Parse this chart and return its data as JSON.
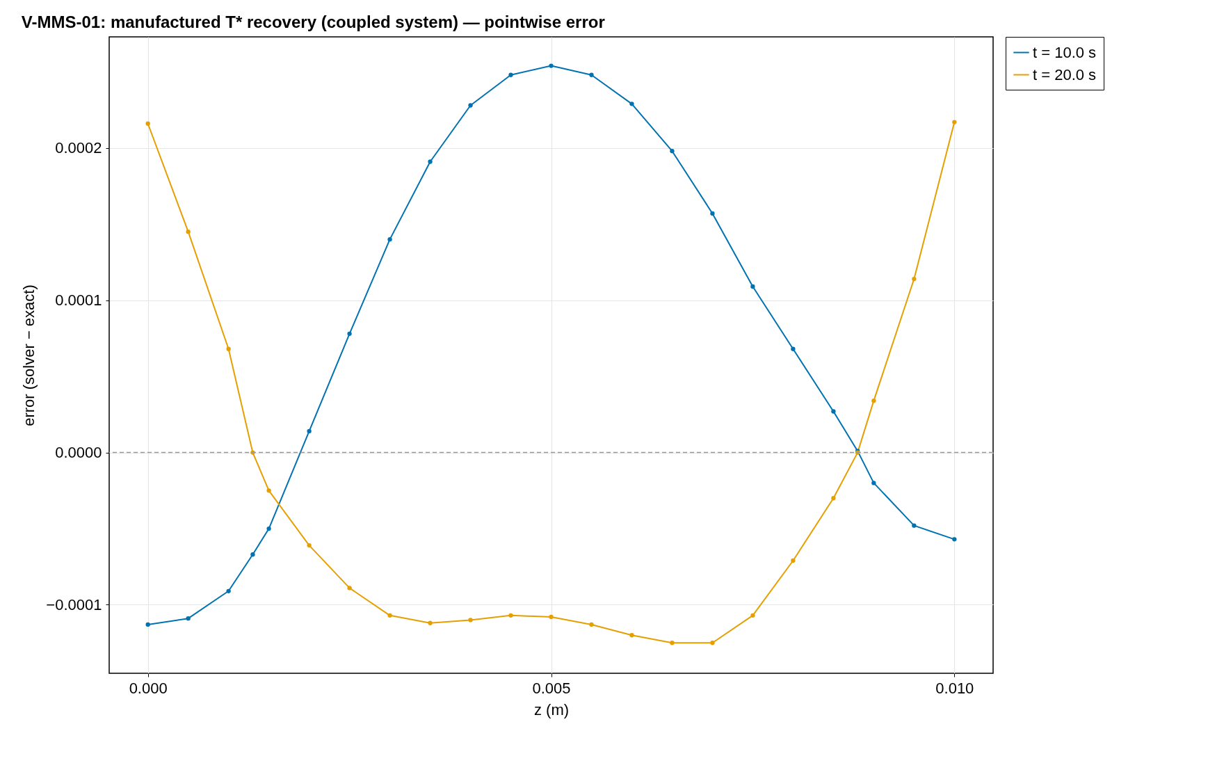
{
  "chart_data": {
    "type": "line",
    "title": "V-MMS-01: manufactured T* recovery (coupled system) — pointwise error",
    "xlabel": "z (m)",
    "ylabel": "error (solver − exact)",
    "x": [
      0,
      0.0005,
      0.001,
      0.0013,
      0.0015,
      0.002,
      0.0025,
      0.003,
      0.0035,
      0.004,
      0.0045,
      0.005,
      0.0055,
      0.006,
      0.0065,
      0.007,
      0.0075,
      0.008,
      0.0085,
      0.0088,
      0.009,
      0.0095,
      0.01
    ],
    "series": [
      {
        "name": "t = 10.0 s",
        "color": "#0072b2",
        "values": [
          -0.000113,
          -0.000109,
          -9.1e-05,
          -6.7e-05,
          -5e-05,
          1.4e-05,
          7.8e-05,
          0.00014,
          0.000191,
          0.000228,
          0.000248,
          0.000254,
          0.000248,
          0.000229,
          0.000198,
          0.000157,
          0.000109,
          6.8e-05,
          2.7e-05,
          1e-06,
          -2e-05,
          -4.8e-05,
          -5.7e-05
        ]
      },
      {
        "name": "t = 20.0 s",
        "color": "#e69f00",
        "values": [
          0.000216,
          0.000145,
          6.8e-05,
          0,
          -2.5e-05,
          -6.1e-05,
          -8.9e-05,
          -0.000107,
          -0.000112,
          -0.00011,
          -0.000107,
          -0.000108,
          -0.000113,
          -0.00012,
          -0.000125,
          -0.000125,
          -0.000107,
          -7.1e-05,
          -3e-05,
          0,
          3.4e-05,
          0.000114,
          0.000217
        ]
      }
    ],
    "xlim": [
      -0.00048,
      0.01048
    ],
    "ylim": [
      -0.000145,
      0.000273
    ],
    "xticks": [
      {
        "value": 0,
        "label": "0.000"
      },
      {
        "value": 0.005,
        "label": "0.005"
      },
      {
        "value": 0.01,
        "label": "0.010"
      }
    ],
    "yticks": [
      {
        "value": -0.0001,
        "label": "−0.0001"
      },
      {
        "value": 0,
        "label": "0.0000"
      },
      {
        "value": 0.0001,
        "label": "0.0001"
      },
      {
        "value": 0.0002,
        "label": "0.0002"
      }
    ],
    "ref_lines": [
      {
        "axis": "y",
        "value": 0,
        "color": "#999999",
        "line_style": "dashed"
      }
    ],
    "grid": true,
    "legend": "right",
    "marker": "circle",
    "line_style": "solid"
  }
}
